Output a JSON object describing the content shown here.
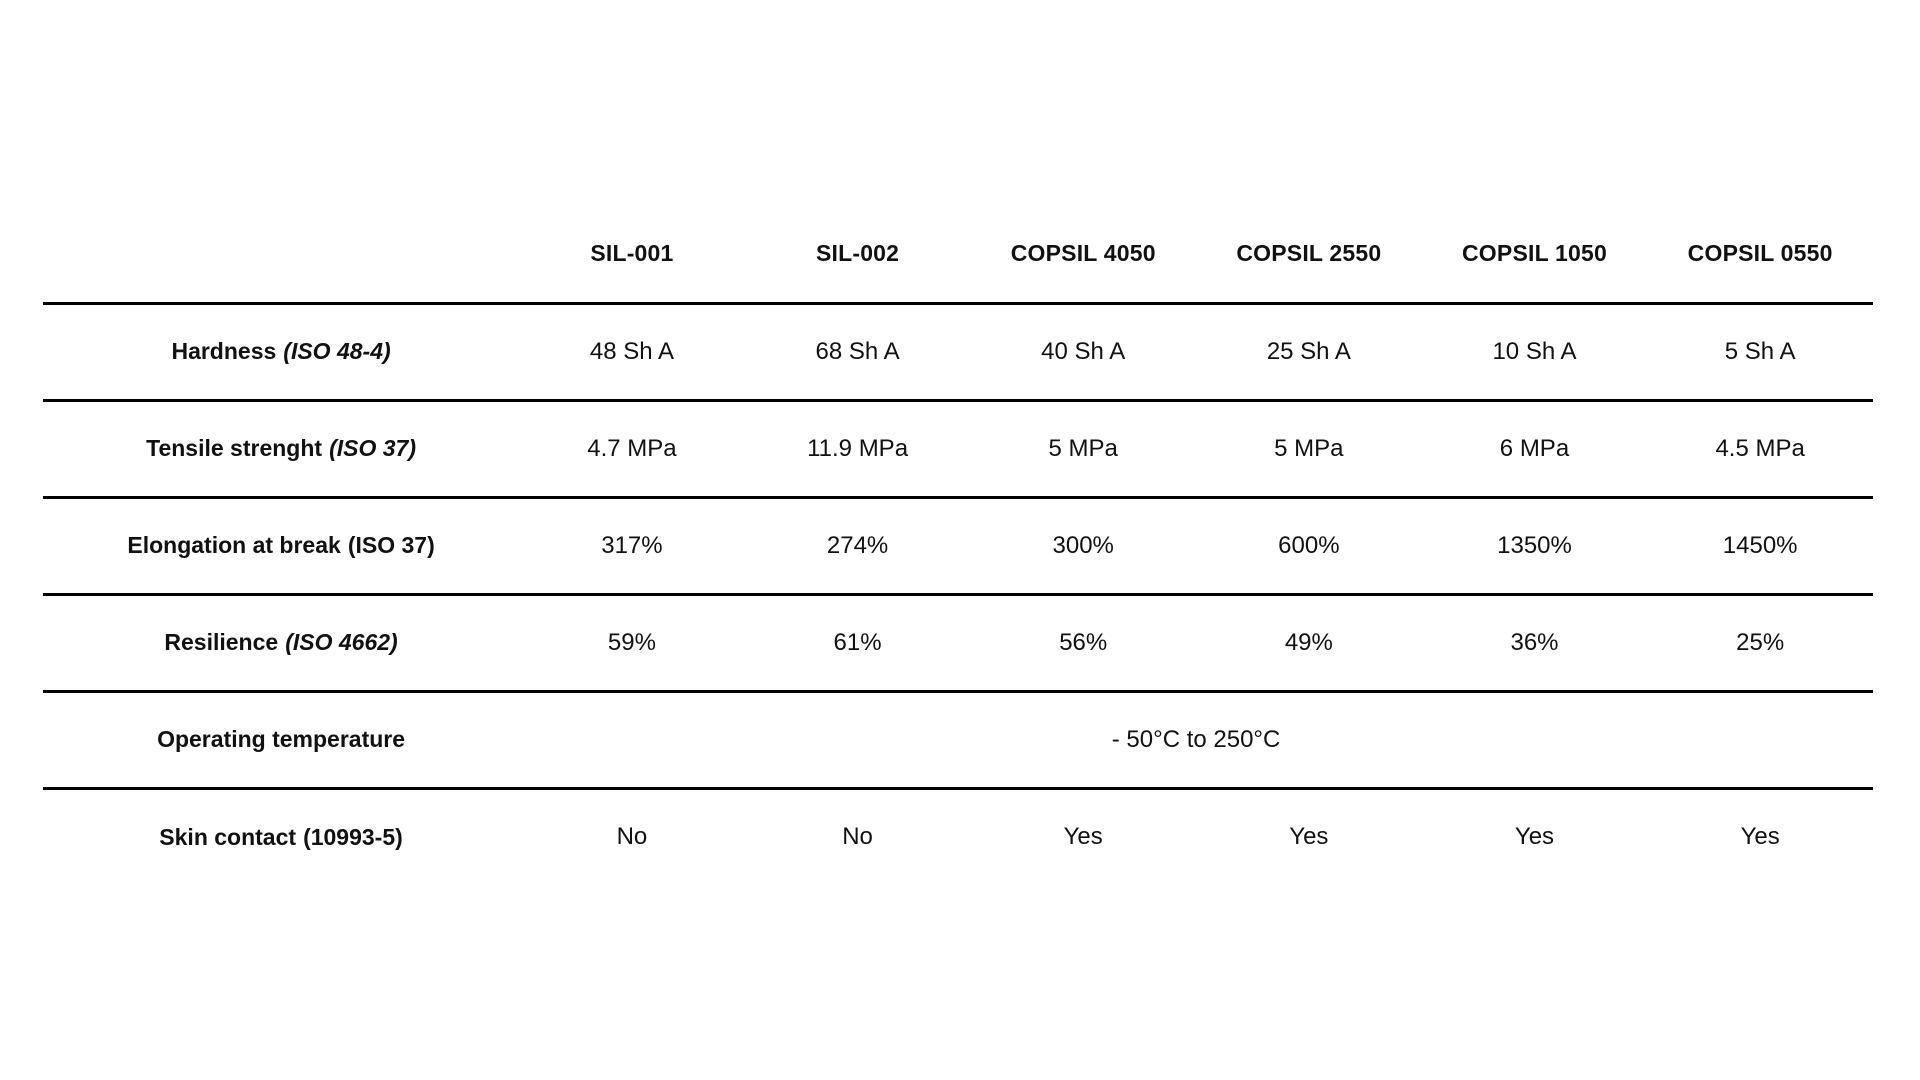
{
  "table": {
    "text_color": "#111111",
    "line_color": "#000000",
    "columns": [
      "SIL-001",
      "SIL-002",
      "COPSIL 4050",
      "COPSIL 2550",
      "COPSIL 1050",
      "COPSIL 0550"
    ],
    "rows": [
      {
        "label": "Hardness",
        "note": "(ISO 48-4)",
        "values": [
          "48 Sh A",
          "68 Sh A",
          "40 Sh A",
          "25 Sh A",
          "10 Sh A",
          "5 Sh A"
        ]
      },
      {
        "label": "Tensile strenght",
        "note": "(ISO 37)",
        "values": [
          "4.7 MPa",
          "11.9 MPa",
          "5 MPa",
          "5 MPa",
          "6 MPa",
          "4.5 MPa"
        ]
      },
      {
        "label": "Elongation at break",
        "note": "(ISO 37)",
        "values": [
          "317%",
          "274%",
          "300%",
          "600%",
          "1350%",
          "1450%"
        ]
      },
      {
        "label": "Resilience",
        "note": "(ISO 4662)",
        "values": [
          "59%",
          "61%",
          "56%",
          "49%",
          "36%",
          "25%"
        ]
      },
      {
        "label": "Operating temperature",
        "note": "",
        "span_value": "- 50°C to 250°C"
      },
      {
        "label": "Skin contact",
        "note": "(10993-5)",
        "values": [
          "No",
          "No",
          "Yes",
          "Yes",
          "Yes",
          "Yes"
        ]
      }
    ]
  }
}
